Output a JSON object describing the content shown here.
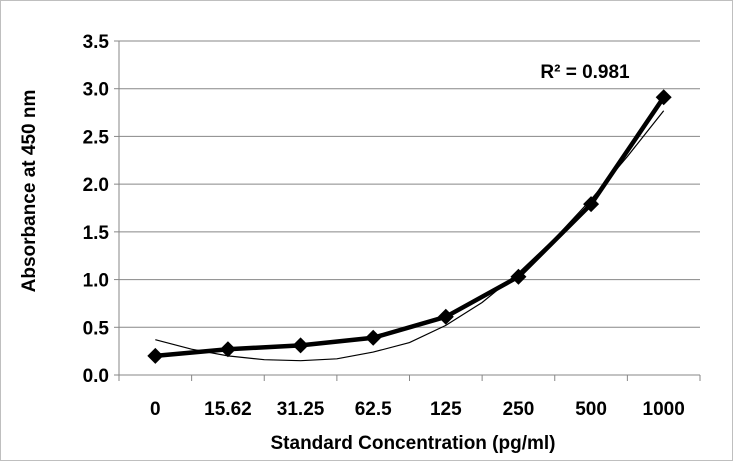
{
  "chart_data": {
    "type": "line",
    "categories": [
      "0",
      "15.62",
      "31.25",
      "62.5",
      "125",
      "250",
      "500",
      "1000"
    ],
    "series": [
      {
        "values": [
          0.2,
          0.27,
          0.31,
          0.39,
          0.61,
          1.03,
          1.79,
          2.91
        ]
      }
    ],
    "trendline": {
      "type": "polynomial",
      "label": "R² = 0.981",
      "curve_points": [
        [
          0,
          0.37
        ],
        [
          0.5,
          0.27
        ],
        [
          1,
          0.2
        ],
        [
          1.5,
          0.16
        ],
        [
          2,
          0.15
        ],
        [
          2.5,
          0.17
        ],
        [
          3,
          0.24
        ],
        [
          3.5,
          0.34
        ],
        [
          4,
          0.52
        ],
        [
          4.5,
          0.76
        ],
        [
          5,
          1.07
        ],
        [
          5.5,
          1.43
        ],
        [
          6,
          1.84
        ],
        [
          6.5,
          2.29
        ],
        [
          7,
          2.77
        ]
      ]
    },
    "xlabel": "Standard Concentration (pg/ml)",
    "ylabel": "Absorbance at 450 nm",
    "yticks": [
      "0.0",
      "0.5",
      "1.0",
      "1.5",
      "2.0",
      "2.5",
      "3.0",
      "3.5"
    ],
    "ylim": [
      0,
      3.5
    ],
    "grid": true,
    "legend": "none",
    "colors": {
      "series": "#000000",
      "trendline": "#000000",
      "grid": "#878787",
      "axis": "#878787"
    },
    "marker": "diamond"
  }
}
